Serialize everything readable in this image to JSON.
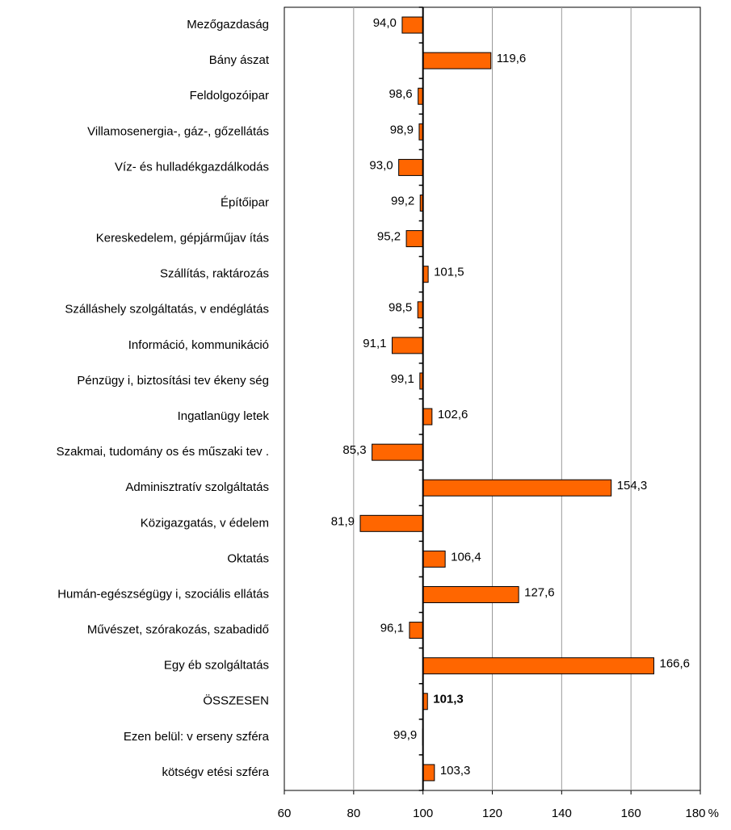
{
  "chart_data": {
    "type": "barh",
    "categories": [
      "Mezőgazdaság",
      "Bány ászat",
      "Feldolgozóipar",
      "Villamosenergia-, gáz-, gőzellátás",
      "Víz- és hulladékgazdálkodás",
      "Építőipar",
      "Kereskedelem, gépjárműjav ítás",
      "Szállítás, raktározás",
      "Szálláshely szolgáltatás, v endéglátás",
      "Információ, kommunikáció",
      "Pénzügy i, biztosítási tev ékeny ség",
      "Ingatlanügy letek",
      "Szakmai, tudomány os és műszaki tev .",
      "Adminisztratív szolgáltatás",
      "Közigazgatás, v édelem",
      "Oktatás",
      "Humán-egészségügy i, szociális ellátás",
      "Művészet, szórakozás, szabadidő",
      "Egy éb szolgáltatás",
      "ÖSSZESEN",
      "Ezen belül: v erseny szféra",
      "kötségv etési szféra"
    ],
    "values": [
      94.0,
      119.6,
      98.6,
      98.9,
      93.0,
      99.2,
      95.2,
      101.5,
      98.5,
      91.1,
      99.1,
      102.6,
      85.3,
      154.3,
      81.9,
      106.4,
      127.6,
      96.1,
      166.6,
      101.3,
      99.9,
      103.3
    ],
    "value_labels": [
      "94,0",
      "119,6",
      "98,6",
      "98,9",
      "93,0",
      "99,2",
      "95,2",
      "101,5",
      "98,5",
      "91,1",
      "99,1",
      "102,6",
      "85,3",
      "154,3",
      "81,9",
      "106,4",
      "127,6",
      "96,1",
      "166,6",
      "101,3",
      "99,9",
      "103,3"
    ],
    "color": "#ff6600",
    "xlim": [
      60,
      180
    ],
    "xticks": [
      60,
      80,
      100,
      120,
      140,
      160,
      180
    ],
    "xlabel": "%",
    "axis_crosses": 100,
    "grid": true,
    "bold_categories": [
      "ÖSSZESEN"
    ]
  }
}
